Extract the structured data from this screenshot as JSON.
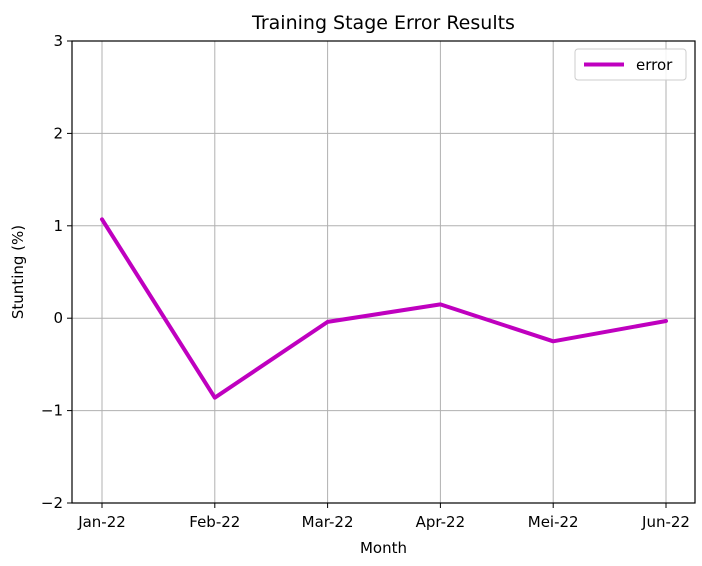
{
  "chart_data": {
    "type": "line",
    "title": "Training Stage Error Results",
    "xlabel": "Month",
    "ylabel": "Stunting (%)",
    "categories": [
      "Jan-22",
      "Feb-22",
      "Mar-22",
      "Apr-22",
      "Mei-22",
      "Jun-22"
    ],
    "series": [
      {
        "name": "error",
        "values": [
          1.07,
          -0.86,
          -0.04,
          0.15,
          -0.25,
          -0.03
        ],
        "color": "#bf00bf"
      }
    ],
    "ylim": [
      -2,
      3
    ],
    "yticks": [
      -2,
      -1,
      0,
      1,
      2,
      3
    ],
    "ytick_labels": [
      "−2",
      "−1",
      "0",
      "1",
      "2",
      "3"
    ],
    "grid": true,
    "legend_position": "top-right"
  }
}
